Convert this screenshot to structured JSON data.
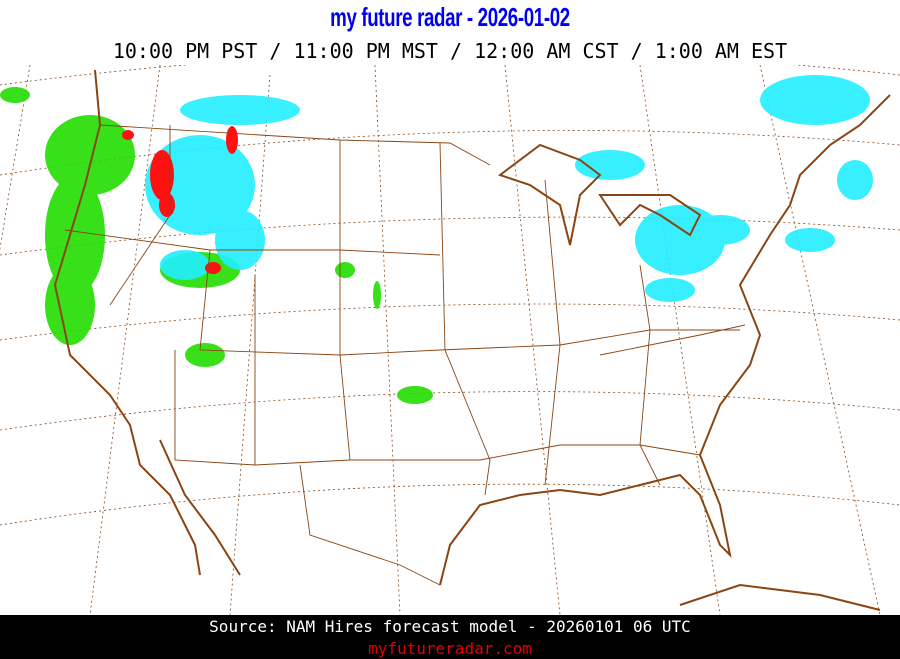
{
  "header": {
    "title": "my future radar - 2026-01-02",
    "time_line": "10:00 PM PST / 11:00 PM MST / 12:00 AM CST /  1:00 AM EST"
  },
  "map": {
    "region": "Continental United States",
    "layers": [
      "state borders",
      "coastlines",
      "lat/lon graticule",
      "forecast precipitation"
    ],
    "colors": {
      "border": "#8b4513",
      "graticule": "#8b4513",
      "rain": "#22dd00",
      "snow": "#22eeff",
      "mix": "#ff1111"
    }
  },
  "footer": {
    "source": "Source: NAM Hires forecast model - 20260101 06 UTC",
    "site": "myfutureradar.com",
    "site_color": "#e00000"
  }
}
